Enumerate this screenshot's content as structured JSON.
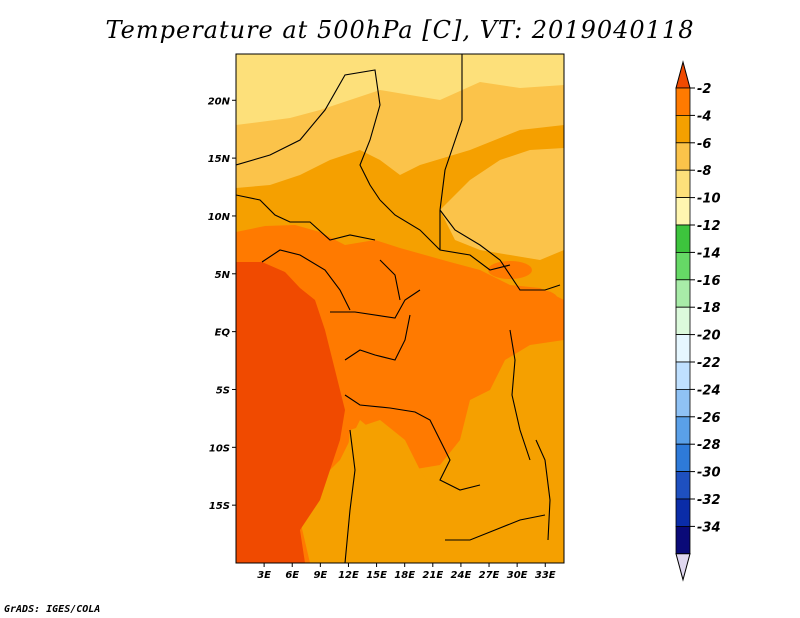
{
  "title": "Temperature at 500hPa [C], VT: 2019040118",
  "footer": "GrADS: IGES/COLA",
  "map": {
    "lon_range": [
      0,
      35
    ],
    "lat_range": [
      -20,
      24
    ],
    "x_ticks": [
      {
        "value": 3,
        "label": "3E"
      },
      {
        "value": 6,
        "label": "6E"
      },
      {
        "value": 9,
        "label": "9E"
      },
      {
        "value": 12,
        "label": "12E"
      },
      {
        "value": 15,
        "label": "15E"
      },
      {
        "value": 18,
        "label": "18E"
      },
      {
        "value": 21,
        "label": "21E"
      },
      {
        "value": 24,
        "label": "24E"
      },
      {
        "value": 27,
        "label": "27E"
      },
      {
        "value": 30,
        "label": "30E"
      },
      {
        "value": 33,
        "label": "33E"
      }
    ],
    "y_ticks": [
      {
        "value": 20,
        "label": "20N"
      },
      {
        "value": 15,
        "label": "15N"
      },
      {
        "value": 10,
        "label": "10N"
      },
      {
        "value": 5,
        "label": "5N"
      },
      {
        "value": 0,
        "label": "EQ"
      },
      {
        "value": -5,
        "label": "5S"
      },
      {
        "value": -10,
        "label": "10S"
      },
      {
        "value": -15,
        "label": "15S"
      }
    ]
  },
  "colorbar": {
    "levels": [
      "-2",
      "-4",
      "-6",
      "-8",
      "-10",
      "-12",
      "-14",
      "-16",
      "-18",
      "-20",
      "-22",
      "-24",
      "-26",
      "-28",
      "-30",
      "-32",
      "-34"
    ],
    "colors": [
      "#f04a00",
      "#ff7a00",
      "#f5a000",
      "#fbc34a",
      "#fde07a",
      "#fff6b0",
      "#3dc43d",
      "#66d966",
      "#a8eca8",
      "#dcfadc",
      "#e6f7ff",
      "#bfe0ff",
      "#8fc2f5",
      "#5aa0e8",
      "#2e7ad9",
      "#1e50c0",
      "#0a2ca8",
      "#0a0a78",
      "#e0d8f0"
    ]
  }
}
